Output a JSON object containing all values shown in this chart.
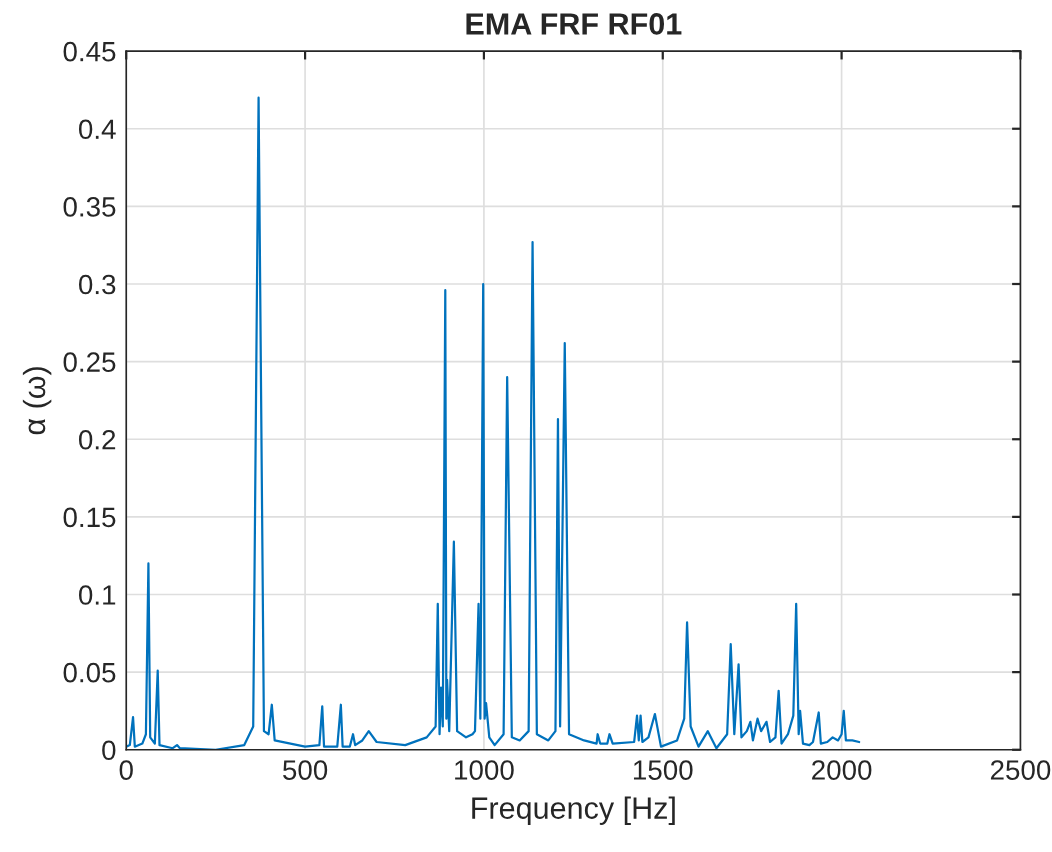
{
  "chart_data": {
    "type": "line",
    "title": "EMA FRF RF01",
    "xlabel": "Frequency [Hz]",
    "ylabel": "α (ω)",
    "xlim": [
      0,
      2500
    ],
    "xticks": [
      0,
      500,
      1000,
      1500,
      2000,
      2500
    ],
    "ylim": [
      0,
      0.45
    ],
    "yticks": [
      0,
      0.05,
      0.1,
      0.15,
      0.2,
      0.25,
      0.3,
      0.35,
      0.4,
      0.45
    ],
    "grid": true,
    "line_style": "solid",
    "marker": "none",
    "series": [
      {
        "color": "#0072bd",
        "x": [
          0,
          10,
          19,
          24,
          45,
          55,
          62,
          67,
          80,
          88,
          93,
          130,
          142,
          150,
          250,
          330,
          355,
          370,
          385,
          398,
          407,
          415,
          500,
          540,
          548,
          553,
          590,
          600,
          605,
          625,
          634,
          640,
          660,
          678,
          700,
          780,
          840,
          865,
          871,
          876,
          880,
          885,
          892,
          895,
          897,
          903,
          916,
          925,
          950,
          968,
          975,
          985,
          990,
          998,
          1002,
          1006,
          1015,
          1030,
          1055,
          1065,
          1078,
          1100,
          1125,
          1136,
          1148,
          1180,
          1200,
          1207,
          1213,
          1226,
          1238,
          1280,
          1315,
          1318,
          1325,
          1345,
          1351,
          1360,
          1420,
          1428,
          1433,
          1438,
          1443,
          1460,
          1478,
          1495,
          1540,
          1560,
          1568,
          1578,
          1600,
          1626,
          1650,
          1680,
          1690,
          1700,
          1712,
          1720,
          1735,
          1745,
          1752,
          1765,
          1775,
          1790,
          1800,
          1815,
          1824,
          1832,
          1850,
          1865,
          1873,
          1880,
          1884,
          1892,
          1910,
          1920,
          1936,
          1942,
          1960,
          1975,
          1990,
          2000,
          2006,
          2012,
          2030,
          2049
        ],
        "values": [
          0.002,
          0.003,
          0.021,
          0.002,
          0.004,
          0.01,
          0.12,
          0.008,
          0.004,
          0.051,
          0.003,
          0.001,
          0.003,
          0.001,
          0.0,
          0.003,
          0.015,
          0.42,
          0.012,
          0.01,
          0.029,
          0.006,
          0.002,
          0.003,
          0.028,
          0.002,
          0.002,
          0.029,
          0.002,
          0.002,
          0.01,
          0.003,
          0.006,
          0.012,
          0.005,
          0.003,
          0.008,
          0.015,
          0.094,
          0.01,
          0.04,
          0.015,
          0.296,
          0.02,
          0.045,
          0.012,
          0.134,
          0.012,
          0.008,
          0.01,
          0.012,
          0.094,
          0.02,
          0.3,
          0.02,
          0.03,
          0.008,
          0.003,
          0.01,
          0.24,
          0.008,
          0.006,
          0.012,
          0.327,
          0.01,
          0.006,
          0.012,
          0.213,
          0.015,
          0.262,
          0.01,
          0.006,
          0.004,
          0.01,
          0.004,
          0.004,
          0.01,
          0.004,
          0.005,
          0.022,
          0.006,
          0.022,
          0.005,
          0.008,
          0.023,
          0.002,
          0.006,
          0.02,
          0.082,
          0.015,
          0.002,
          0.012,
          0.001,
          0.01,
          0.068,
          0.01,
          0.055,
          0.008,
          0.012,
          0.018,
          0.006,
          0.02,
          0.012,
          0.018,
          0.005,
          0.008,
          0.038,
          0.004,
          0.01,
          0.022,
          0.094,
          0.01,
          0.025,
          0.004,
          0.003,
          0.005,
          0.024,
          0.004,
          0.005,
          0.008,
          0.006,
          0.01,
          0.025,
          0.006,
          0.006,
          0.005
        ]
      }
    ]
  }
}
